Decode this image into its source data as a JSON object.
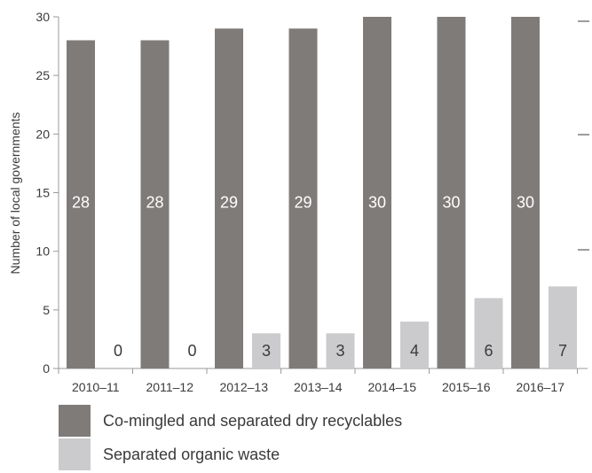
{
  "chart_data": {
    "type": "bar",
    "categories": [
      "2010–11",
      "2011–12",
      "2012–13",
      "2013–14",
      "2014–15",
      "2015–16",
      "2016–17"
    ],
    "series": [
      {
        "name": "Co-mingled and separated dry recyclables",
        "values": [
          28,
          28,
          29,
          29,
          30,
          30,
          30
        ],
        "color": "#7f7b79"
      },
      {
        "name": "Separated organic waste",
        "values": [
          0,
          0,
          3,
          3,
          4,
          6,
          7
        ],
        "color": "#cbcbcd"
      }
    ],
    "title": "",
    "xlabel": "",
    "ylabel": "Number of local governments",
    "ylim": [
      0,
      30
    ],
    "yticks": [
      0,
      5,
      10,
      15,
      20,
      25,
      30
    ],
    "legend_position": "bottom-left",
    "grid": false
  }
}
